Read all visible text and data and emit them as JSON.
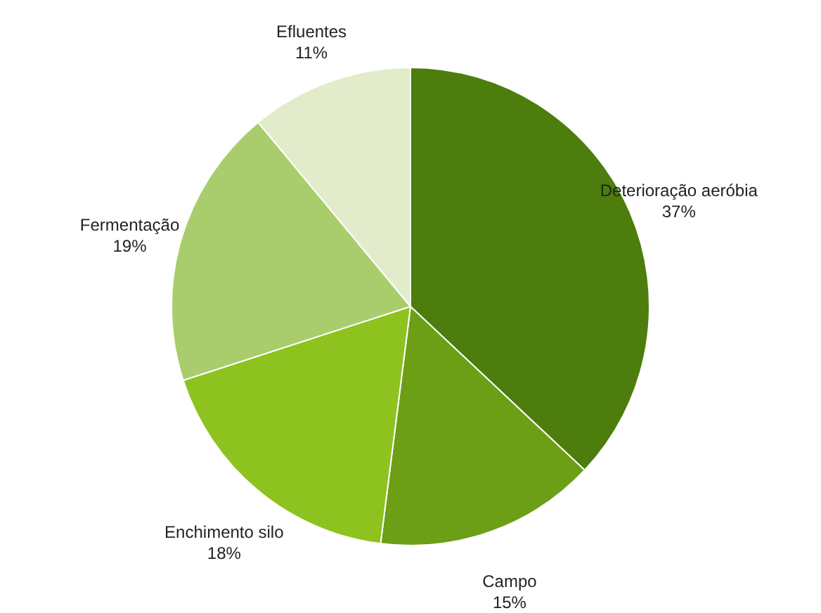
{
  "chart_data": {
    "type": "pie",
    "categories": [
      "Deterioração aeróbia",
      "Campo",
      "Enchimento silo",
      "Fermentação",
      "Efluentes"
    ],
    "values": [
      37,
      15,
      18,
      19,
      11
    ],
    "value_labels": [
      "37%",
      "15%",
      "18%",
      "19%",
      "11%"
    ],
    "colors": [
      "#4d7d0c",
      "#6c9f16",
      "#8dc21f",
      "#a9cd6c",
      "#e2ecca"
    ],
    "legend": false
  }
}
